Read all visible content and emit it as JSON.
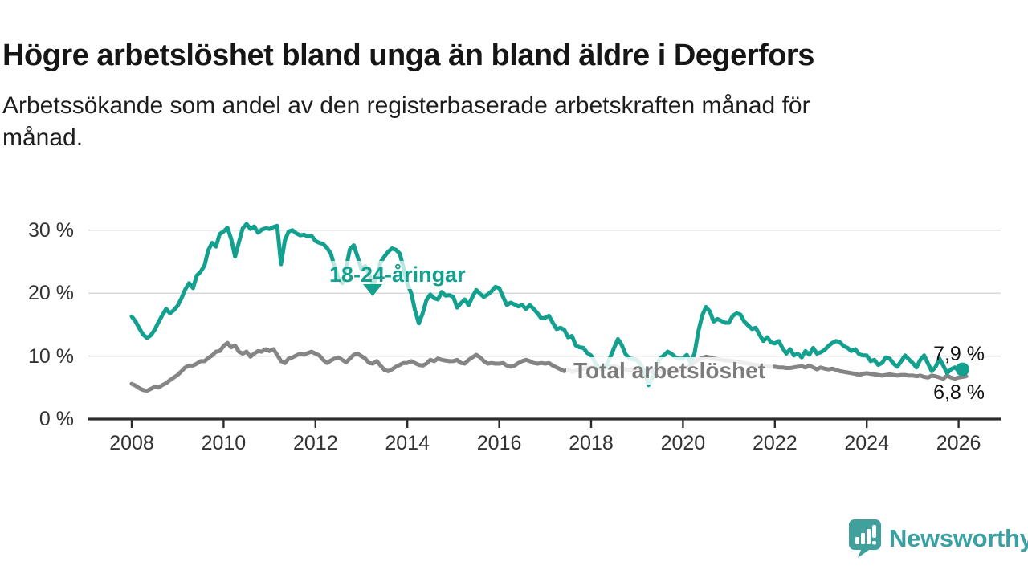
{
  "title": "Högre arbetslöshet bland unga än bland äldre i Degerfors",
  "subtitle_line1": "Arbetssökande som andel av den registerbaserade arbetskraften månad för",
  "subtitle_line2": "månad.",
  "logo": {
    "text": "Newsworthy",
    "color": "#3aa0a2",
    "icon_color": "#40a19c"
  },
  "colors": {
    "youth_line": "#13a08f",
    "total_line": "#858585",
    "grid": "#d9d9d9",
    "axis": "#2d2d2d",
    "tick_label": "#333333",
    "end_label": "#111111"
  },
  "chart_data": {
    "type": "line",
    "unit": "%",
    "x_range": {
      "start": "2008-01",
      "end": "2026-03",
      "interval": "monthly"
    },
    "ylim": [
      0,
      31
    ],
    "grid": "horizontal",
    "legend_position": "inline-labels",
    "y_ticks": [
      {
        "label": "30 %",
        "value": 30
      },
      {
        "label": "20 %",
        "value": 20
      },
      {
        "label": "10 %",
        "value": 10
      },
      {
        "label": "0 %",
        "value": 0
      }
    ],
    "x_ticks": [
      {
        "label": "2008",
        "year": 2008
      },
      {
        "label": "2010",
        "year": 2010
      },
      {
        "label": "2012",
        "year": 2012
      },
      {
        "label": "2014",
        "year": 2014
      },
      {
        "label": "2016",
        "year": 2016
      },
      {
        "label": "2018",
        "year": 2018
      },
      {
        "label": "2020",
        "year": 2020
      },
      {
        "label": "2022",
        "year": 2022
      },
      {
        "label": "2024",
        "year": 2024
      },
      {
        "label": "2026",
        "year": 2026
      }
    ],
    "series": [
      {
        "name": "18-24-åringar",
        "color": "#13a08f",
        "end_label": "7,9 %",
        "end_value": 7.9,
        "values": [
          16.3,
          15.5,
          14.4,
          13.4,
          12.9,
          13.3,
          14.2,
          15.4,
          16.5,
          17.5,
          16.8,
          17.3,
          18,
          19.2,
          20.6,
          21.6,
          20.8,
          22.8,
          23.4,
          24.4,
          26.8,
          28,
          27.4,
          29.4,
          29.8,
          30.4,
          28.6,
          25.8,
          28.1,
          30.3,
          31,
          30.2,
          30.6,
          29.6,
          30.1,
          30.3,
          30.2,
          30.5,
          30.7,
          24.6,
          28.4,
          29.8,
          30,
          29.5,
          29.2,
          29.3,
          29,
          29.1,
          28.3,
          28,
          27.8,
          27.2,
          26.3,
          24.2,
          22.3,
          21.6,
          24,
          27,
          27.6,
          25.8,
          23.8,
          24.3,
          23,
          21.2,
          22.6,
          24.9,
          25.8,
          26.6,
          27.1,
          26.9,
          26.3,
          24.1,
          21.5,
          20,
          17.3,
          15.2,
          16.8,
          18.9,
          19.8,
          19.2,
          19,
          20.2,
          19.6,
          19.7,
          19.4,
          17.7,
          18.4,
          19,
          18.1,
          19.4,
          20.5,
          19.9,
          19.4,
          19.8,
          20.3,
          21,
          20.8,
          19.4,
          18.1,
          18.5,
          18.2,
          17.9,
          18.1,
          17.5,
          18.1,
          17.5,
          16.8,
          16,
          16.1,
          16.4,
          15.3,
          14.3,
          14.5,
          14.2,
          13,
          13.2,
          11.7,
          11.4,
          11.3,
          10.5,
          10.1,
          9,
          8.2,
          7.8,
          8.5,
          9.8,
          11.3,
          12.7,
          11.8,
          10.3,
          9.6,
          9.5,
          9.4,
          8.6,
          7.4,
          5.4,
          6.6,
          8.2,
          9.6,
          10.1,
          10.7,
          10.4,
          9.8,
          9.6,
          9.6,
          10.2,
          8.9,
          10.4,
          13.9,
          16.4,
          17.8,
          17.1,
          15.5,
          15.9,
          15.6,
          15.3,
          15.3,
          16.4,
          16.8,
          16.6,
          15.5,
          14.9,
          14.3,
          14.5,
          13.4,
          12.4,
          13,
          12.2,
          12,
          12.4,
          11.3,
          10.4,
          11.1,
          10.1,
          10.4,
          9.8,
          10.8,
          10.2,
          11.3,
          10.4,
          10.6,
          11,
          11.6,
          12.1,
          12.4,
          12.2,
          11.6,
          11.3,
          10.8,
          11.1,
          10.3,
          10.1,
          10.1,
          9.2,
          9.4,
          8.6,
          8.9,
          9.8,
          9.6,
          8.8,
          8.3,
          9.2,
          10.1,
          9.5,
          8.9,
          8.2,
          9.4,
          10.1,
          8.8,
          7.6,
          8.3,
          9.6,
          8.5,
          7.3,
          7.9,
          8.2,
          7.7,
          7.9
        ]
      },
      {
        "name": "Total arbetslöshet",
        "color": "#858585",
        "end_label": "6,8 %",
        "end_value": 6.8,
        "values": [
          5.6,
          5.3,
          4.9,
          4.6,
          4.5,
          4.8,
          5.1,
          5,
          5.4,
          5.7,
          6.2,
          6.6,
          7,
          7.6,
          8.2,
          8.5,
          8.5,
          8.8,
          9.2,
          9.2,
          9.7,
          10.1,
          10.7,
          10.8,
          11.6,
          12.1,
          11.4,
          11.7,
          10.7,
          10.4,
          10.7,
          9.9,
          10.4,
          10.8,
          10.7,
          11.1,
          10.8,
          11.1,
          10.2,
          9.2,
          8.9,
          9.6,
          9.8,
          10.1,
          10.4,
          10.2,
          10.5,
          10.7,
          10.4,
          10.1,
          9.4,
          8.9,
          9.3,
          9.6,
          9.8,
          9.4,
          9,
          9.6,
          10.2,
          10.4,
          10,
          9.6,
          8.9,
          8.8,
          9.2,
          8.5,
          7.8,
          7.6,
          7.9,
          8.3,
          8.6,
          8.9,
          8.9,
          9.2,
          8.9,
          8.6,
          8.5,
          8.8,
          9.4,
          9.2,
          9.6,
          9.4,
          9.3,
          9.2,
          9.2,
          9.4,
          8.9,
          8.8,
          9.4,
          9.8,
          10.2,
          9.8,
          9.2,
          8.8,
          8.9,
          8.8,
          8.8,
          8.9,
          8.5,
          8.3,
          8.5,
          8.9,
          9.2,
          9.4,
          9.2,
          8.9,
          8.8,
          8.9,
          8.8,
          8.9,
          8.5,
          8.2,
          7.9,
          7.6,
          7.9,
          7.5,
          7.7,
          7.9,
          8,
          8.1,
          8.2,
          8.3,
          8.2,
          8,
          8.1,
          8.3,
          8.4,
          8.2,
          8,
          7.9,
          7.8,
          7.8,
          7.8,
          7.7,
          7.6,
          7.5,
          7.6,
          7.7,
          7.8,
          7.9,
          7.8,
          7.7,
          7.8,
          7.9,
          8,
          8.2,
          8.5,
          9,
          9.4,
          9.7,
          9.9,
          9.8,
          9.6,
          9.5,
          9.4,
          9.3,
          9.3,
          9.2,
          9.1,
          9,
          8.9,
          8.8,
          8.7,
          8.6,
          8.5,
          8.4,
          8.4,
          8.3,
          8.3,
          8.2,
          8.2,
          8.1,
          8.1,
          8.2,
          8.3,
          8.4,
          8.2,
          8.5,
          8.2,
          7.9,
          8.2,
          8,
          7.9,
          8,
          7.8,
          7.6,
          7.5,
          7.4,
          7.3,
          7.2,
          7,
          7.2,
          7.3,
          7.2,
          7.1,
          7,
          6.9,
          7,
          7.1,
          7,
          6.9,
          7,
          7,
          6.9,
          6.9,
          6.8,
          6.9,
          6.7,
          6.6,
          6.9,
          6.8,
          6.6,
          6.4,
          6.9,
          6.6,
          6.4,
          6.6,
          6.7,
          6.8
        ]
      }
    ]
  }
}
